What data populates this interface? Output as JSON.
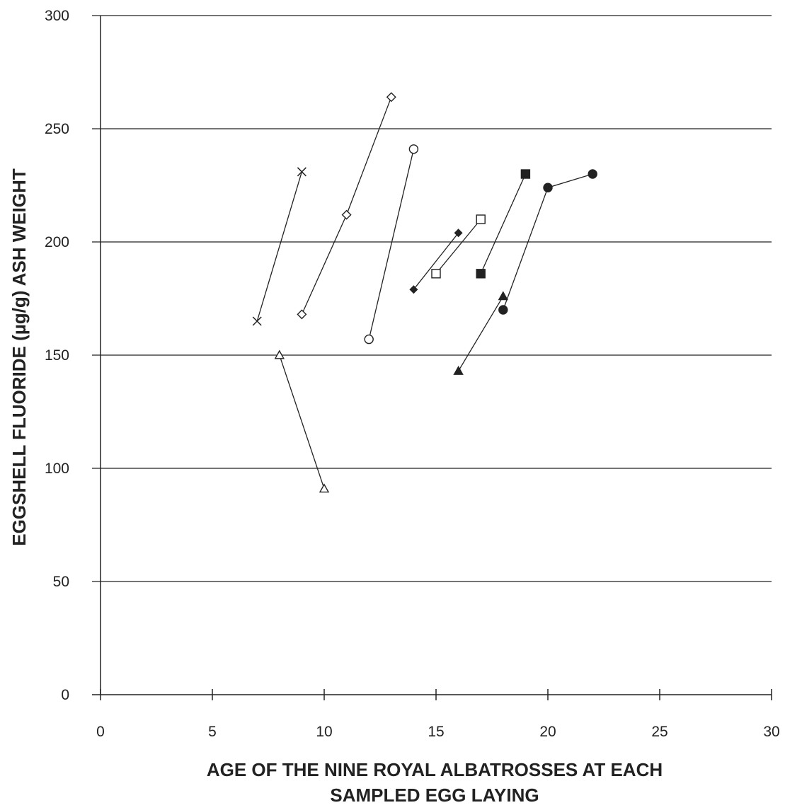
{
  "chart_data": {
    "type": "scatter",
    "title": "",
    "xlabel_lines": [
      "AGE OF THE NINE ROYAL ALBATROSSES AT EACH",
      "SAMPLED EGG LAYING"
    ],
    "ylabel": "EGGSHELL FLUORIDE (µg/g) ASH WEIGHT",
    "xlim": [
      0,
      30
    ],
    "ylim": [
      0,
      300
    ],
    "xticks": [
      0,
      5,
      10,
      15,
      20,
      25,
      30
    ],
    "yticks": [
      0,
      50,
      100,
      150,
      200,
      250,
      300
    ],
    "grid": "horizontal",
    "series": [
      {
        "marker": "x",
        "points": [
          [
            7,
            165
          ],
          [
            9,
            231
          ]
        ]
      },
      {
        "marker": "diamond-open",
        "points": [
          [
            9,
            168
          ],
          [
            11,
            212
          ],
          [
            13,
            264
          ]
        ]
      },
      {
        "marker": "triangle-open",
        "points": [
          [
            8,
            150
          ],
          [
            10,
            91
          ]
        ]
      },
      {
        "marker": "circle-open",
        "points": [
          [
            12,
            157
          ],
          [
            14,
            241
          ]
        ]
      },
      {
        "marker": "diamond-filled",
        "points": [
          [
            14,
            179
          ],
          [
            16,
            204
          ]
        ]
      },
      {
        "marker": "square-open",
        "points": [
          [
            15,
            186
          ],
          [
            17,
            210
          ]
        ]
      },
      {
        "marker": "square-filled",
        "points": [
          [
            17,
            186
          ],
          [
            19,
            230
          ]
        ]
      },
      {
        "marker": "triangle-filled",
        "points": [
          [
            16,
            143
          ],
          [
            18,
            176
          ]
        ]
      },
      {
        "marker": "circle-filled",
        "points": [
          [
            18,
            170
          ],
          [
            20,
            224
          ],
          [
            22,
            230
          ]
        ]
      }
    ]
  }
}
